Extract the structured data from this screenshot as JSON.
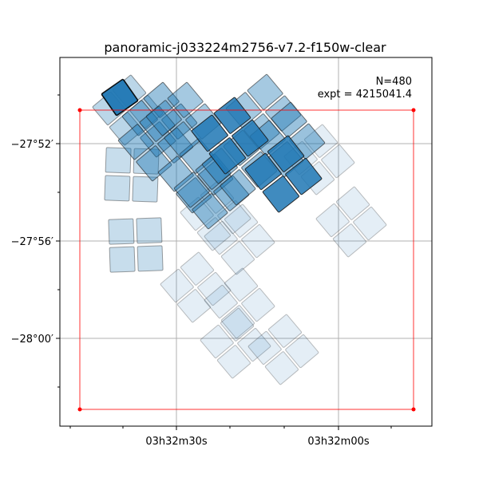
{
  "chart_data": {
    "type": "footprint-map",
    "title": "panoramic-j033224m2756-v7.2-f150w-clear",
    "annotation": {
      "line1": "N=480",
      "line2": "expt = 4215041.4"
    },
    "x_tick_labels": [
      "03h32m30s",
      "03h32m00s"
    ],
    "y_tick_labels": [
      "−27°52′",
      "−27°56′",
      "−28°00′"
    ],
    "grid": true,
    "region_color": "#ff0000",
    "tile_color": "#1f77b4",
    "coverage_note": "overlapping square detector footprints; darker = more exposure"
  }
}
